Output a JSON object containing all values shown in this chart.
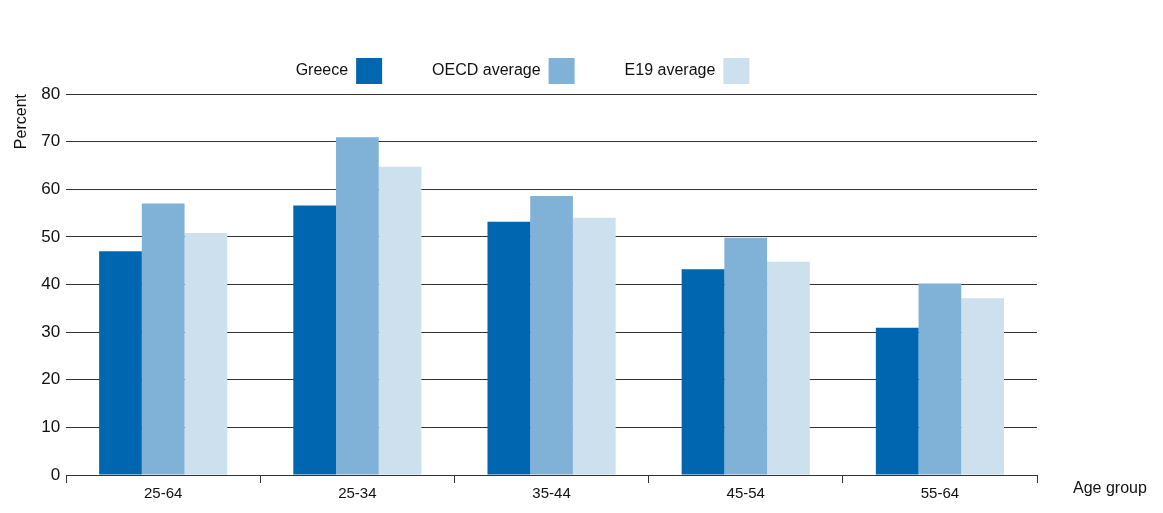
{
  "chart_data": {
    "type": "bar",
    "xlabel": "Age group",
    "ylabel": "Percent",
    "categories": [
      "25-64",
      "25-34",
      "35-44",
      "45-54",
      "55-64"
    ],
    "series": [
      {
        "name": "Greece",
        "color": "#0066b0",
        "values": [
          47.0,
          56.6,
          53.2,
          43.2,
          30.9
        ]
      },
      {
        "name": "OECD average",
        "color": "#80b2d8",
        "values": [
          57.0,
          70.9,
          58.6,
          49.8,
          40.2
        ]
      },
      {
        "name": "E19 average",
        "color": "#cce0ee",
        "values": [
          50.8,
          64.7,
          54.0,
          44.8,
          37.1
        ]
      }
    ],
    "ylim": [
      0,
      80
    ],
    "yticks": [
      0,
      10,
      20,
      30,
      40,
      50,
      60,
      70,
      80
    ],
    "grid": "y",
    "legend": "top"
  }
}
